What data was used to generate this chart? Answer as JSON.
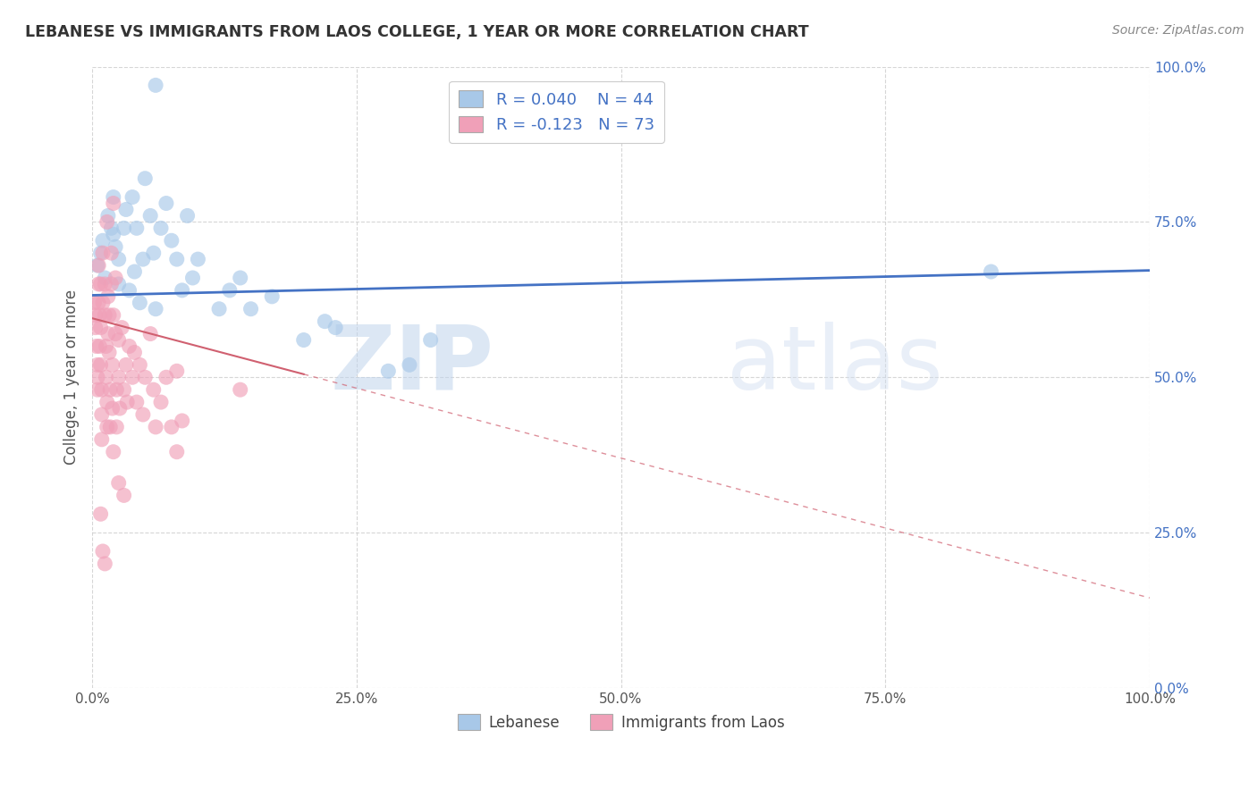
{
  "title": "LEBANESE VS IMMIGRANTS FROM LAOS COLLEGE, 1 YEAR OR MORE CORRELATION CHART",
  "source": "Source: ZipAtlas.com",
  "ylabel": "College, 1 year or more",
  "xmin": 0.0,
  "xmax": 1.0,
  "ymin": 0.0,
  "ymax": 1.0,
  "x_ticks": [
    0.0,
    0.25,
    0.5,
    0.75,
    1.0
  ],
  "y_ticks": [
    0.0,
    0.25,
    0.5,
    0.75,
    1.0
  ],
  "x_tick_labels": [
    "0.0%",
    "25.0%",
    "50.0%",
    "75.0%",
    "100.0%"
  ],
  "y_tick_labels": [
    "0.0%",
    "25.0%",
    "50.0%",
    "75.0%",
    "100.0%"
  ],
  "legend_label1": "Lebanese",
  "legend_label2": "Immigrants from Laos",
  "R1": 0.04,
  "N1": 44,
  "R2": -0.123,
  "N2": 73,
  "color_blue": "#a8c8e8",
  "color_pink": "#f0a0b8",
  "color_line_blue": "#4472c4",
  "color_line_pink": "#d06070",
  "watermark_zip": "ZIP",
  "watermark_atlas": "atlas",
  "blue_line_y0": 0.632,
  "blue_line_y1": 0.672,
  "pink_line_y0": 0.595,
  "pink_line_y1": 0.145,
  "scatter_blue": [
    [
      0.005,
      0.68
    ],
    [
      0.008,
      0.7
    ],
    [
      0.01,
      0.72
    ],
    [
      0.012,
      0.66
    ],
    [
      0.015,
      0.76
    ],
    [
      0.018,
      0.74
    ],
    [
      0.02,
      0.79
    ],
    [
      0.02,
      0.73
    ],
    [
      0.022,
      0.71
    ],
    [
      0.025,
      0.69
    ],
    [
      0.025,
      0.65
    ],
    [
      0.03,
      0.74
    ],
    [
      0.032,
      0.77
    ],
    [
      0.035,
      0.64
    ],
    [
      0.038,
      0.79
    ],
    [
      0.04,
      0.67
    ],
    [
      0.042,
      0.74
    ],
    [
      0.045,
      0.62
    ],
    [
      0.048,
      0.69
    ],
    [
      0.05,
      0.82
    ],
    [
      0.055,
      0.76
    ],
    [
      0.058,
      0.7
    ],
    [
      0.06,
      0.61
    ],
    [
      0.065,
      0.74
    ],
    [
      0.07,
      0.78
    ],
    [
      0.075,
      0.72
    ],
    [
      0.08,
      0.69
    ],
    [
      0.085,
      0.64
    ],
    [
      0.09,
      0.76
    ],
    [
      0.095,
      0.66
    ],
    [
      0.1,
      0.69
    ],
    [
      0.12,
      0.61
    ],
    [
      0.13,
      0.64
    ],
    [
      0.14,
      0.66
    ],
    [
      0.15,
      0.61
    ],
    [
      0.17,
      0.63
    ],
    [
      0.2,
      0.56
    ],
    [
      0.22,
      0.59
    ],
    [
      0.23,
      0.58
    ],
    [
      0.28,
      0.51
    ],
    [
      0.3,
      0.52
    ],
    [
      0.32,
      0.56
    ],
    [
      0.06,
      0.97
    ],
    [
      0.85,
      0.67
    ]
  ],
  "scatter_pink": [
    [
      0.002,
      0.62
    ],
    [
      0.003,
      0.6
    ],
    [
      0.003,
      0.58
    ],
    [
      0.004,
      0.55
    ],
    [
      0.005,
      0.52
    ],
    [
      0.005,
      0.5
    ],
    [
      0.005,
      0.48
    ],
    [
      0.006,
      0.65
    ],
    [
      0.006,
      0.62
    ],
    [
      0.006,
      0.68
    ],
    [
      0.007,
      0.6
    ],
    [
      0.007,
      0.55
    ],
    [
      0.008,
      0.65
    ],
    [
      0.008,
      0.58
    ],
    [
      0.008,
      0.52
    ],
    [
      0.009,
      0.48
    ],
    [
      0.009,
      0.44
    ],
    [
      0.009,
      0.4
    ],
    [
      0.01,
      0.62
    ],
    [
      0.01,
      0.7
    ],
    [
      0.012,
      0.65
    ],
    [
      0.012,
      0.6
    ],
    [
      0.013,
      0.55
    ],
    [
      0.013,
      0.5
    ],
    [
      0.014,
      0.46
    ],
    [
      0.014,
      0.42
    ],
    [
      0.015,
      0.57
    ],
    [
      0.015,
      0.63
    ],
    [
      0.016,
      0.6
    ],
    [
      0.016,
      0.54
    ],
    [
      0.017,
      0.48
    ],
    [
      0.017,
      0.42
    ],
    [
      0.018,
      0.65
    ],
    [
      0.018,
      0.7
    ],
    [
      0.019,
      0.52
    ],
    [
      0.019,
      0.45
    ],
    [
      0.02,
      0.38
    ],
    [
      0.02,
      0.6
    ],
    [
      0.022,
      0.66
    ],
    [
      0.022,
      0.57
    ],
    [
      0.023,
      0.48
    ],
    [
      0.023,
      0.42
    ],
    [
      0.025,
      0.56
    ],
    [
      0.025,
      0.5
    ],
    [
      0.026,
      0.45
    ],
    [
      0.028,
      0.58
    ],
    [
      0.03,
      0.48
    ],
    [
      0.032,
      0.52
    ],
    [
      0.033,
      0.46
    ],
    [
      0.035,
      0.55
    ],
    [
      0.038,
      0.5
    ],
    [
      0.04,
      0.54
    ],
    [
      0.042,
      0.46
    ],
    [
      0.045,
      0.52
    ],
    [
      0.048,
      0.44
    ],
    [
      0.05,
      0.5
    ],
    [
      0.055,
      0.57
    ],
    [
      0.058,
      0.48
    ],
    [
      0.06,
      0.42
    ],
    [
      0.065,
      0.46
    ],
    [
      0.07,
      0.5
    ],
    [
      0.075,
      0.42
    ],
    [
      0.08,
      0.38
    ],
    [
      0.085,
      0.43
    ],
    [
      0.008,
      0.28
    ],
    [
      0.01,
      0.22
    ],
    [
      0.012,
      0.2
    ],
    [
      0.014,
      0.75
    ],
    [
      0.02,
      0.78
    ],
    [
      0.025,
      0.33
    ],
    [
      0.03,
      0.31
    ],
    [
      0.08,
      0.51
    ],
    [
      0.14,
      0.48
    ]
  ]
}
